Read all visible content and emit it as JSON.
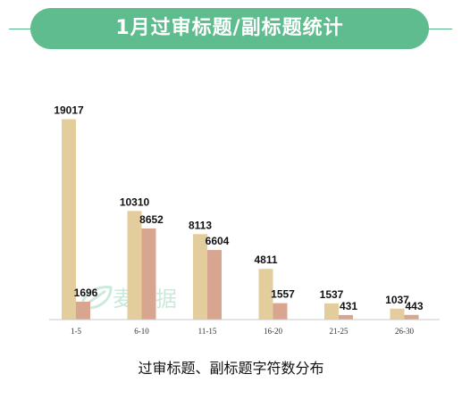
{
  "header": {
    "title": "1月过审标题/副标题统计"
  },
  "chart_data": {
    "type": "bar",
    "title": "1月过审标题/副标题统计",
    "xlabel": "过审标题、副标题字符数分布",
    "ylabel": "",
    "categories": [
      "1-5",
      "6-10",
      "11-15",
      "16-20",
      "21-25",
      "26-30"
    ],
    "series": [
      {
        "values": [
          19017,
          10310,
          8113,
          4811,
          1537,
          1037
        ],
        "color": "#e4cd9c"
      },
      {
        "values": [
          1696,
          8652,
          6604,
          1557,
          431,
          443
        ],
        "color": "#d8a591"
      }
    ],
    "ylim": [
      0,
      20000
    ],
    "grid": false,
    "legend": "none",
    "data_labels": true
  },
  "watermark": {
    "text": "麦数据",
    "icon": "leaf-icon"
  },
  "colors": {
    "accent": "#5fbc8e",
    "axis": "#c8c8c8"
  }
}
